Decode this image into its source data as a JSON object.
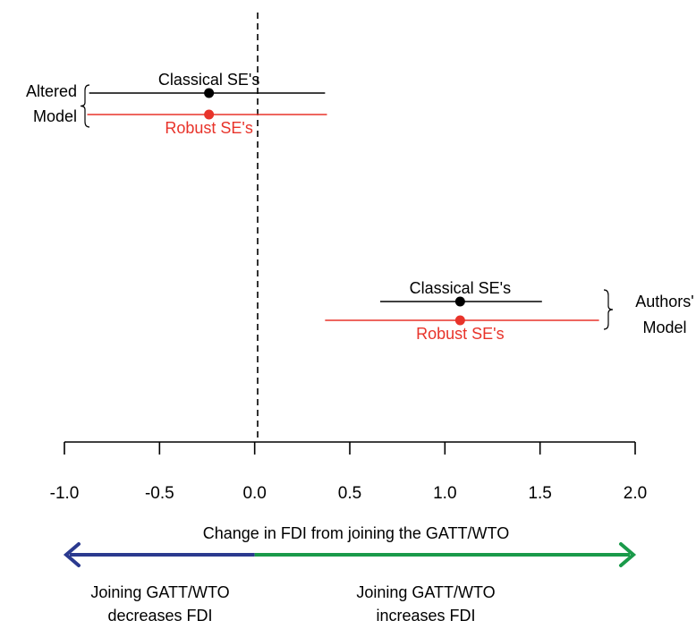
{
  "chart_data": {
    "type": "scatter",
    "xlim": [
      -1.0,
      2.0
    ],
    "xticks": [
      "-1.0",
      "-0.5",
      "0.0",
      "0.5",
      "1.0",
      "1.5",
      "2.0"
    ],
    "xlabel": "Change in FDI from joining the GATT/WTO",
    "reference_line": 0.0,
    "groups": [
      {
        "name": "Altered\nModel",
        "intervals": [
          {
            "label": "Classical SE's",
            "estimate": -0.24,
            "lower": -0.87,
            "upper": 0.37,
            "color": "#000000"
          },
          {
            "label": "Robust SE's",
            "estimate": -0.24,
            "lower": -0.88,
            "upper": 0.38,
            "color": "#e8332a"
          }
        ]
      },
      {
        "name": "Authors'\nModel",
        "intervals": [
          {
            "label": "Classical SE's",
            "estimate": 1.08,
            "lower": 0.66,
            "upper": 1.51,
            "color": "#000000"
          },
          {
            "label": "Robust SE's",
            "estimate": 1.08,
            "lower": 0.37,
            "upper": 1.81,
            "color": "#e8332a"
          }
        ]
      }
    ],
    "arrow_left_text": "Joining GATT/WTO\ndecreases FDI",
    "arrow_right_text": "Joining GATT/WTO\nincreases FDI",
    "colors": {
      "left_arrow": "#2b3a8f",
      "right_arrow": "#1a9a4a",
      "axis": "#000000"
    }
  }
}
